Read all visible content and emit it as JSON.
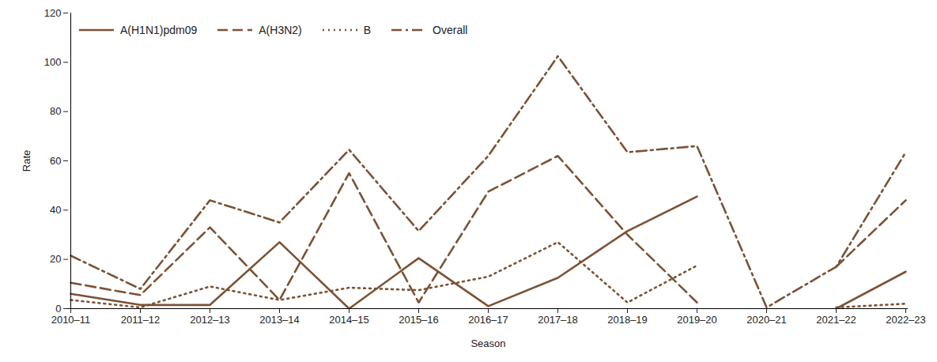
{
  "chart_data": {
    "type": "line",
    "xlabel": "Season",
    "ylabel": "Rate",
    "categories": [
      "2010–11",
      "2011–12",
      "2012–13",
      "2013–14",
      "2014–15",
      "2015–16",
      "2016–17",
      "2017–18",
      "2018–19",
      "2019–20",
      "2020–21",
      "2021–22",
      "2022–23"
    ],
    "series": [
      {
        "name": "A(H1N1)pdm09",
        "color": "#7b5236",
        "line_style": "solid",
        "values": [
          6,
          1.5,
          1.5,
          27,
          0,
          20.5,
          1,
          12.5,
          31.5,
          45.5,
          null,
          0,
          15
        ]
      },
      {
        "name": "A(H3N2)",
        "color": "#7b5236",
        "line_style": "dashed",
        "values": [
          10.5,
          5.5,
          33,
          3.5,
          55,
          2.5,
          47.5,
          62,
          30,
          2.5,
          null,
          17,
          44
        ]
      },
      {
        "name": "B",
        "color": "#7b5236",
        "line_style": "dotted",
        "values": [
          3.5,
          0.5,
          9,
          3.5,
          8.5,
          7.5,
          13,
          27,
          2.5,
          17.5,
          null,
          0.5,
          2
        ]
      },
      {
        "name": "Overall",
        "color": "#7b5236",
        "line_style": "dashdot",
        "values": [
          21.5,
          8,
          44,
          35,
          64.5,
          31.5,
          62,
          102.5,
          63.5,
          66,
          0.5,
          17,
          63.5
        ]
      }
    ],
    "ylim": [
      0,
      120
    ],
    "yticks": [
      0,
      20,
      40,
      60,
      80,
      100,
      120
    ],
    "grid": false,
    "legend": "top-left"
  }
}
